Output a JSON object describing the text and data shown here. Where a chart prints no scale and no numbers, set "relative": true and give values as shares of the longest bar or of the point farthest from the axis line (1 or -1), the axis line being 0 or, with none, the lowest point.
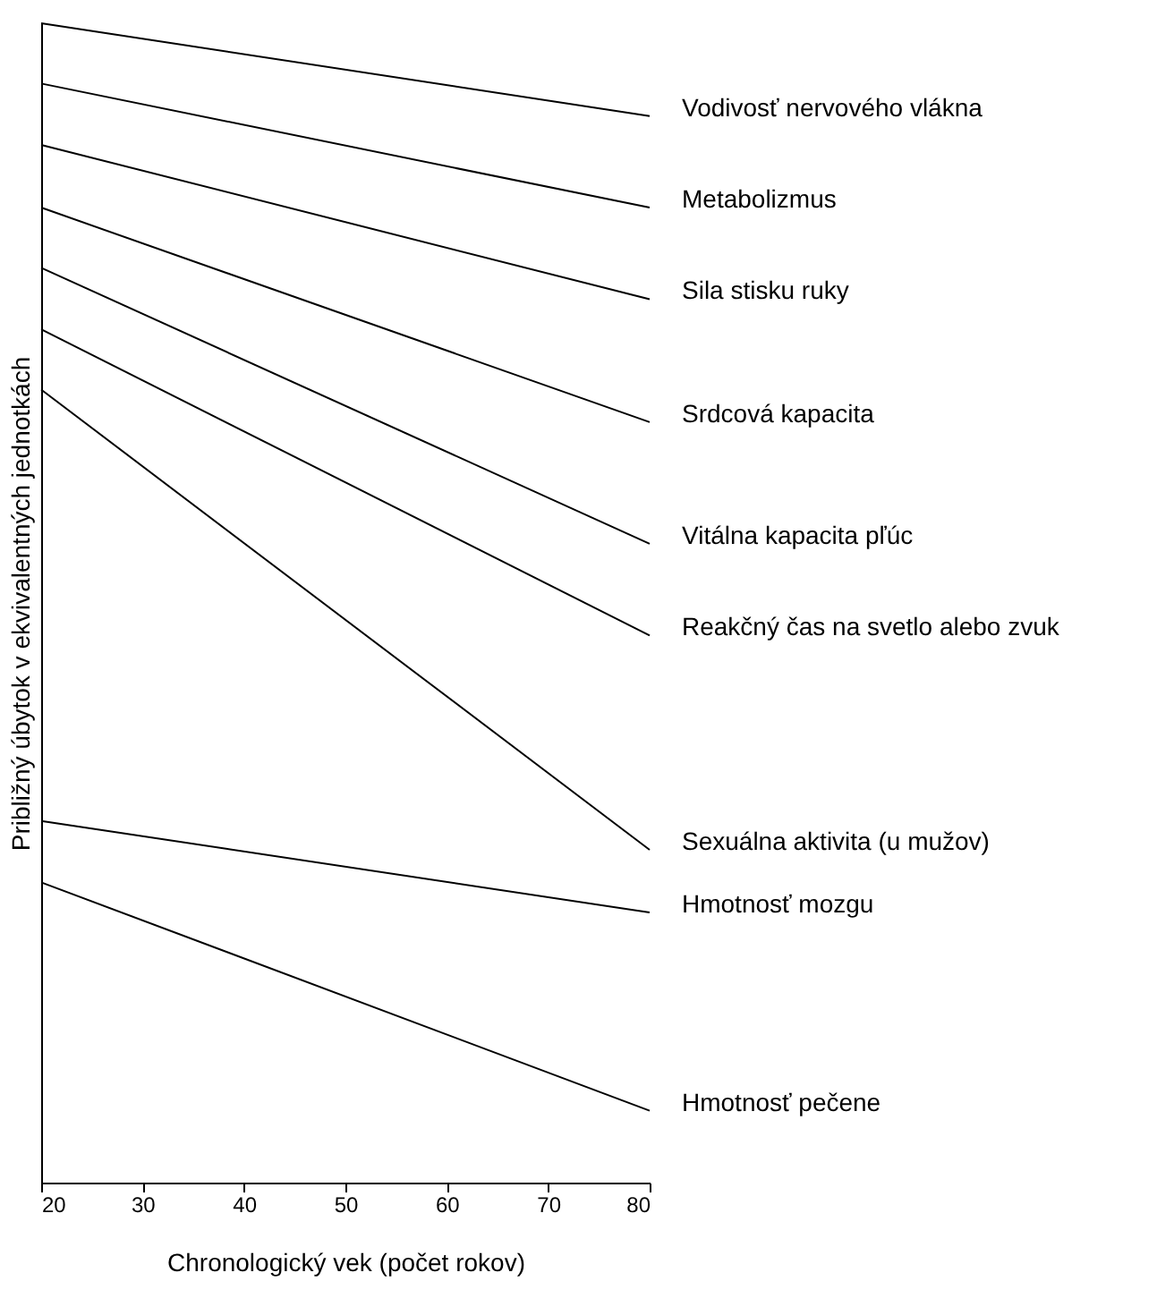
{
  "chart_data": {
    "type": "line",
    "relative": true,
    "xlabel": "Chronologický vek (počet rokov)",
    "ylabel": "Približný úbytok v ekvivalentných jednotkách",
    "xlim": [
      20,
      80
    ],
    "xticks": [
      20,
      30,
      40,
      50,
      60,
      70,
      80
    ],
    "grid": false,
    "legend": false,
    "marker": "none",
    "line_style": "solid",
    "x": [
      20,
      80
    ],
    "series": [
      {
        "name": "Vodivosť nervového vlákna",
        "color": "#000000",
        "values": [
          1.0,
          0.92
        ]
      },
      {
        "name": "Metabolizmus",
        "color": "#000000",
        "values": [
          0.948,
          0.841
        ]
      },
      {
        "name": "Sila stisku ruky",
        "color": "#000000",
        "values": [
          0.895,
          0.762
        ]
      },
      {
        "name": "Srdcová kapacita",
        "color": "#000000",
        "values": [
          0.841,
          0.656
        ]
      },
      {
        "name": "Vitálna kapacita pľúc",
        "color": "#000000",
        "values": [
          0.789,
          0.551
        ]
      },
      {
        "name": "Reakčný čas na svetlo alebo zvuk",
        "color": "#000000",
        "values": [
          0.736,
          0.472
        ]
      },
      {
        "name": "Sexuálna aktivita (u mužov)",
        "color": "#000000",
        "values": [
          0.684,
          0.287
        ]
      },
      {
        "name": "Hmotnosť mozgu",
        "color": "#000000",
        "values": [
          0.312,
          0.233
        ]
      },
      {
        "name": "Hmotnosť pečene",
        "color": "#000000",
        "values": [
          0.259,
          0.062
        ]
      }
    ]
  }
}
